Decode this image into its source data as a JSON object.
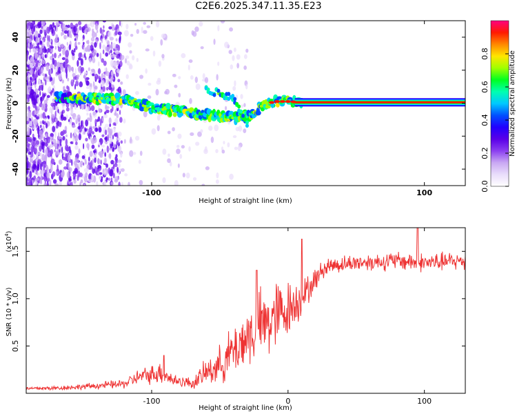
{
  "title": "C2E6.2025.347.11.35.E23",
  "chart_data": [
    {
      "type": "heatmap",
      "name": "spectrogram",
      "xlabel": "Height of straight line (km)",
      "ylabel": "Frequency (Hz)",
      "xlim": [
        -192,
        130
      ],
      "ylim": [
        -50,
        50
      ],
      "xticks": [
        -100,
        100
      ],
      "yticks": [
        -40,
        -20,
        0,
        20,
        40
      ],
      "colorbar": {
        "label": "Normalized spectral amplitude",
        "range": [
          0,
          1
        ],
        "ticks": [
          "0.0",
          "0.2",
          "0.4",
          "0.6",
          "0.8"
        ],
        "colors": [
          "#ffffff",
          "#e9ddfb",
          "#c9a8f3",
          "#8b3ff0",
          "#5a00e8",
          "#2200ff",
          "#0050ff",
          "#00c8ff",
          "#00ffb0",
          "#00ff20",
          "#a0ff00",
          "#ffe600",
          "#ff8800",
          "#ff1a00",
          "#ff0080"
        ]
      },
      "ridge": {
        "x": [
          -160,
          -140,
          -120,
          -100,
          -90,
          -80,
          -70,
          -60,
          -50,
          -40,
          -30,
          -20,
          -10,
          0,
          10,
          130
        ],
        "y": [
          3,
          3,
          2,
          -3,
          -4,
          -5,
          -6,
          -7,
          -8,
          -9,
          -8,
          -2,
          1,
          1,
          0.5,
          0.5
        ]
      },
      "branch": {
        "x": [
          -60,
          -50,
          -40,
          -30
        ],
        "y": [
          8,
          6,
          3,
          -12
        ]
      }
    },
    {
      "type": "line",
      "name": "snr",
      "xlabel": "Height of straight line (km)",
      "ylabel": "SNR (10 * v/v)",
      "ymultiplier_base": "(x10",
      "ymultiplier_exp": "4",
      "ymultiplier_close": ")",
      "xlim": [
        -192,
        130
      ],
      "ylim": [
        0,
        17500
      ],
      "xticks": [
        -100,
        0,
        100
      ],
      "yticks": [
        "0.5",
        "1.0",
        "1.5"
      ],
      "series_color": "#ee3333",
      "envelope": {
        "x": [
          -192,
          -170,
          -150,
          -120,
          -110,
          -100,
          -95,
          -90,
          -85,
          -75,
          -70,
          -60,
          -50,
          -40,
          -30,
          -20,
          -15,
          -10,
          -5,
          0,
          5,
          10,
          15,
          20,
          25,
          30,
          50,
          80,
          100,
          130
        ],
        "mean": [
          500,
          550,
          700,
          1000,
          1700,
          2000,
          2200,
          2000,
          1400,
          1200,
          1000,
          2200,
          3000,
          4500,
          6000,
          7000,
          7500,
          8000,
          8500,
          9000,
          9500,
          10000,
          11000,
          12000,
          13000,
          13500,
          13800,
          14000,
          13800,
          14000
        ],
        "noise": [
          200,
          250,
          300,
          500,
          800,
          1000,
          1200,
          1100,
          700,
          600,
          600,
          1400,
          2000,
          2800,
          3500,
          4000,
          4000,
          4000,
          3500,
          3000,
          2500,
          2000,
          1500,
          1200,
          1000,
          900,
          900,
          1000,
          1000,
          1000
        ]
      },
      "peaks": [
        {
          "x": -91,
          "y": 4000
        },
        {
          "x": -23,
          "y": 13000
        },
        {
          "x": 10,
          "y": 16300
        },
        {
          "x": 95,
          "y": 17500
        }
      ]
    }
  ]
}
